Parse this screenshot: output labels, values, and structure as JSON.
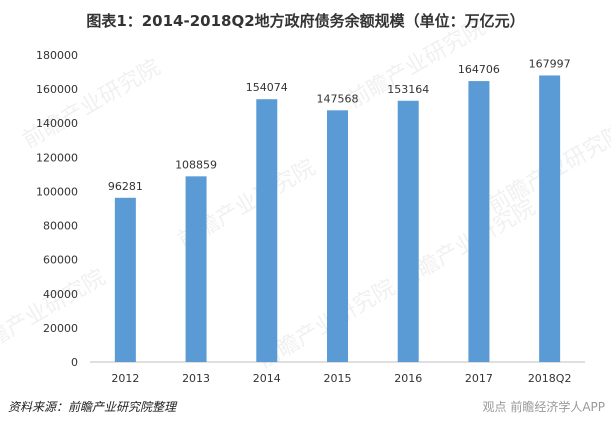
{
  "chart_data": {
    "type": "bar",
    "title": "图表1：2014-2018Q2地方政府债务余额规模（单位：万亿元）",
    "categories": [
      "2012",
      "2013",
      "2014",
      "2015",
      "2016",
      "2017",
      "2018Q2"
    ],
    "values": [
      96281,
      108859,
      154074,
      147568,
      153164,
      164706,
      167997
    ],
    "data_labels": [
      "96281",
      "108859",
      "154074",
      "147568",
      "153164",
      "164706",
      "167997"
    ],
    "ylim": [
      0,
      180000
    ],
    "yticks": [
      "0",
      "20000",
      "40000",
      "60000",
      "80000",
      "100000",
      "120000",
      "140000",
      "160000",
      "180000"
    ],
    "grid": false,
    "bar_color": "#5b9bd5"
  },
  "source": "资料来源：前瞻产业研究院整理",
  "watermark": "前瞻产业研究院",
  "corner_text": "观点 前瞻经济学人APP"
}
